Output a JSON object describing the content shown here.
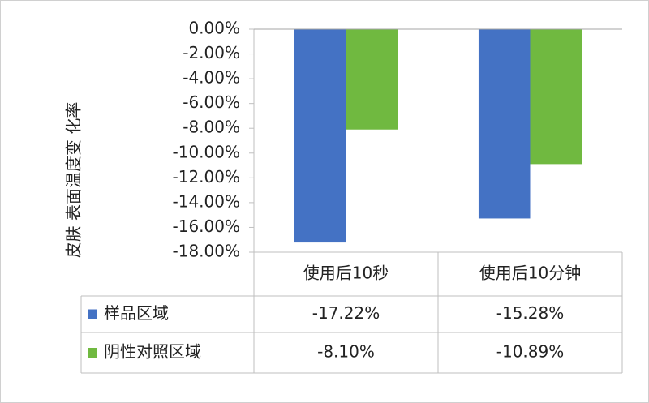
{
  "chart_data": {
    "type": "bar",
    "y_label": "皮肤 表面温度变 化率",
    "categories": [
      "使用后10秒",
      "使用后10分钟"
    ],
    "series": [
      {
        "name": "样品区域",
        "color": "#4472c4",
        "values": [
          -17.22,
          -15.28
        ],
        "value_labels": [
          "-17.22%",
          "-15.28%"
        ]
      },
      {
        "name": "阴性对照区域",
        "color": "#70b940",
        "values": [
          -8.1,
          -10.89
        ],
        "value_labels": [
          "-8.10%",
          "-10.89%"
        ]
      }
    ],
    "ylim": [
      -18,
      0
    ],
    "yticks": [
      {
        "value": 0,
        "label": "0.00%"
      },
      {
        "value": -2,
        "label": "-2.00%"
      },
      {
        "value": -4,
        "label": "-4.00%"
      },
      {
        "value": -6,
        "label": "-6.00%"
      },
      {
        "value": -8,
        "label": "-8.00%"
      },
      {
        "value": -10,
        "label": "-10.00%"
      },
      {
        "value": -12,
        "label": "-12.00%"
      },
      {
        "value": -14,
        "label": "-14.00%"
      },
      {
        "value": -16,
        "label": "-16.00%"
      },
      {
        "value": -18,
        "label": "-18.00%"
      }
    ],
    "grid": false
  }
}
